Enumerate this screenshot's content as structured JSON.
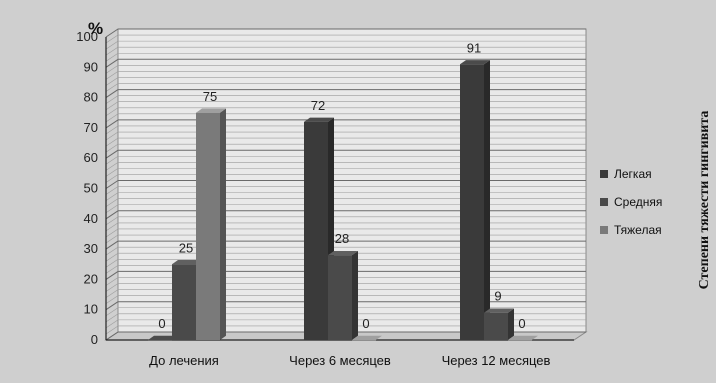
{
  "chart_data": {
    "type": "bar",
    "categories": [
      "До лечения",
      "Через 6 месяцев",
      "Через 12 месяцев"
    ],
    "series": [
      {
        "name": "Легкая",
        "values": [
          0,
          72,
          91
        ],
        "color": "#3a3a3a"
      },
      {
        "name": "Средняя",
        "values": [
          25,
          28,
          9
        ],
        "color": "#4a4a4a"
      },
      {
        "name": "Тяжелая",
        "values": [
          75,
          0,
          0
        ],
        "color": "#7a7a7a"
      }
    ],
    "ylim": [
      0,
      100
    ],
    "yticks": [
      "0",
      "10",
      "20",
      "30",
      "40",
      "50",
      "60",
      "70",
      "80",
      "90",
      "100"
    ],
    "yunit": "%",
    "legend_title": "Степени тяжести гингивита",
    "legend_position": "right",
    "grid": true
  }
}
